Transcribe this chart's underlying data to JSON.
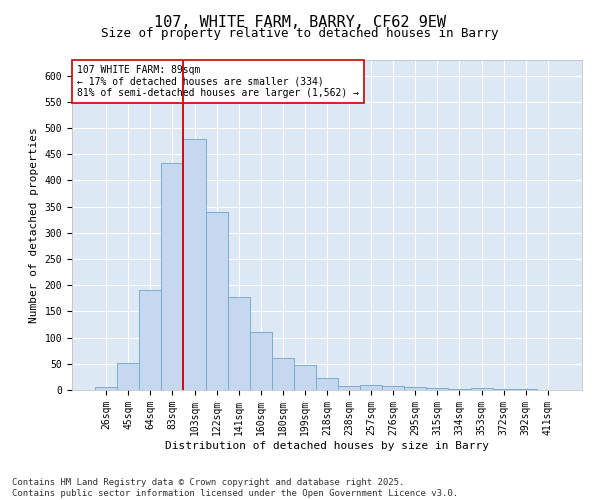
{
  "title": "107, WHITE FARM, BARRY, CF62 9EW",
  "subtitle": "Size of property relative to detached houses in Barry",
  "xlabel": "Distribution of detached houses by size in Barry",
  "ylabel": "Number of detached properties",
  "categories": [
    "26sqm",
    "45sqm",
    "64sqm",
    "83sqm",
    "103sqm",
    "122sqm",
    "141sqm",
    "160sqm",
    "180sqm",
    "199sqm",
    "218sqm",
    "238sqm",
    "257sqm",
    "276sqm",
    "295sqm",
    "315sqm",
    "334sqm",
    "353sqm",
    "372sqm",
    "392sqm",
    "411sqm"
  ],
  "values": [
    5,
    52,
    190,
    433,
    480,
    340,
    178,
    110,
    62,
    47,
    22,
    7,
    10,
    8,
    5,
    3,
    1,
    4,
    2,
    1,
    0
  ],
  "bar_color": "#c5d8ef",
  "bar_edge_color": "#7aadd4",
  "vline_color": "#cc0000",
  "vline_x_index": 3,
  "annotation_text_line1": "107 WHITE FARM: 89sqm",
  "annotation_text_line2": "← 17% of detached houses are smaller (334)",
  "annotation_text_line3": "81% of semi-detached houses are larger (1,562) →",
  "annotation_box_color": "#ffffff",
  "annotation_box_edge_color": "#cc0000",
  "ylim": [
    0,
    630
  ],
  "yticks": [
    0,
    50,
    100,
    150,
    200,
    250,
    300,
    350,
    400,
    450,
    500,
    550,
    600
  ],
  "plot_bg_color": "#dde8f5",
  "fig_bg_color": "#ffffff",
  "footer": "Contains HM Land Registry data © Crown copyright and database right 2025.\nContains public sector information licensed under the Open Government Licence v3.0.",
  "title_fontsize": 11,
  "axis_label_fontsize": 8,
  "tick_fontsize": 7,
  "annotation_fontsize": 7,
  "footer_fontsize": 6.5
}
